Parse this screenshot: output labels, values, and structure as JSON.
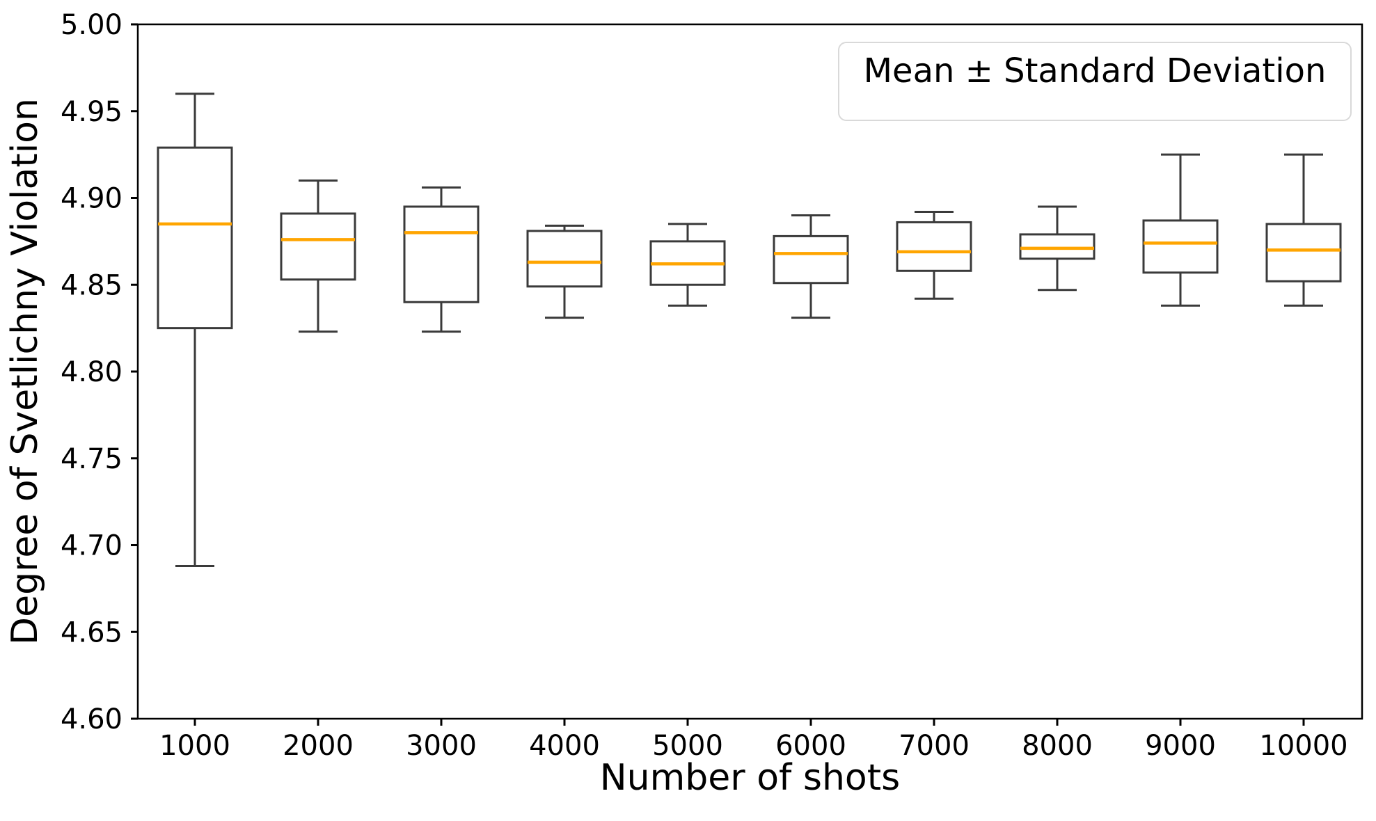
{
  "figure": {
    "kind": "matplotlib-boxplot-figure"
  },
  "chart_data": {
    "type": "boxplot",
    "title": "",
    "xlabel": "Number of shots",
    "ylabel": "Degree of Svetlichny Violation",
    "legend": {
      "label": "Mean ± Standard Deviation",
      "position": "upper right"
    },
    "grid": false,
    "ylim": [
      4.6,
      5.0
    ],
    "ytick_labels": [
      "4.60",
      "4.65",
      "4.70",
      "4.75",
      "4.80",
      "4.85",
      "4.90",
      "4.95",
      "5.00"
    ],
    "xtick_labels": [
      "1000",
      "2000",
      "3000",
      "4000",
      "5000",
      "6000",
      "7000",
      "8000",
      "9000",
      "10000"
    ],
    "categories": [
      1000,
      2000,
      3000,
      4000,
      5000,
      6000,
      7000,
      8000,
      9000,
      10000
    ],
    "boxes": [
      {
        "x": 1000,
        "whisker_low": 4.688,
        "q1": 4.825,
        "median": 4.885,
        "q3": 4.929,
        "whisker_high": 4.96
      },
      {
        "x": 2000,
        "whisker_low": 4.823,
        "q1": 4.853,
        "median": 4.876,
        "q3": 4.891,
        "whisker_high": 4.91
      },
      {
        "x": 3000,
        "whisker_low": 4.823,
        "q1": 4.84,
        "median": 4.88,
        "q3": 4.895,
        "whisker_high": 4.906
      },
      {
        "x": 4000,
        "whisker_low": 4.831,
        "q1": 4.849,
        "median": 4.863,
        "q3": 4.881,
        "whisker_high": 4.884
      },
      {
        "x": 5000,
        "whisker_low": 4.838,
        "q1": 4.85,
        "median": 4.862,
        "q3": 4.875,
        "whisker_high": 4.885
      },
      {
        "x": 6000,
        "whisker_low": 4.831,
        "q1": 4.851,
        "median": 4.868,
        "q3": 4.878,
        "whisker_high": 4.89
      },
      {
        "x": 7000,
        "whisker_low": 4.842,
        "q1": 4.858,
        "median": 4.869,
        "q3": 4.886,
        "whisker_high": 4.892
      },
      {
        "x": 8000,
        "whisker_low": 4.847,
        "q1": 4.865,
        "median": 4.871,
        "q3": 4.879,
        "whisker_high": 4.895
      },
      {
        "x": 9000,
        "whisker_low": 4.838,
        "q1": 4.857,
        "median": 4.874,
        "q3": 4.887,
        "whisker_high": 4.925
      },
      {
        "x": 10000,
        "whisker_low": 4.838,
        "q1": 4.852,
        "median": 4.87,
        "q3": 4.885,
        "whisker_high": 4.925
      }
    ],
    "colors": {
      "median": "#FFA500",
      "box_edge": "#3A3A3A",
      "spine": "#000000",
      "tick_label": "#000000",
      "legend_border": "#d9d9d9",
      "background": "#ffffff"
    }
  }
}
